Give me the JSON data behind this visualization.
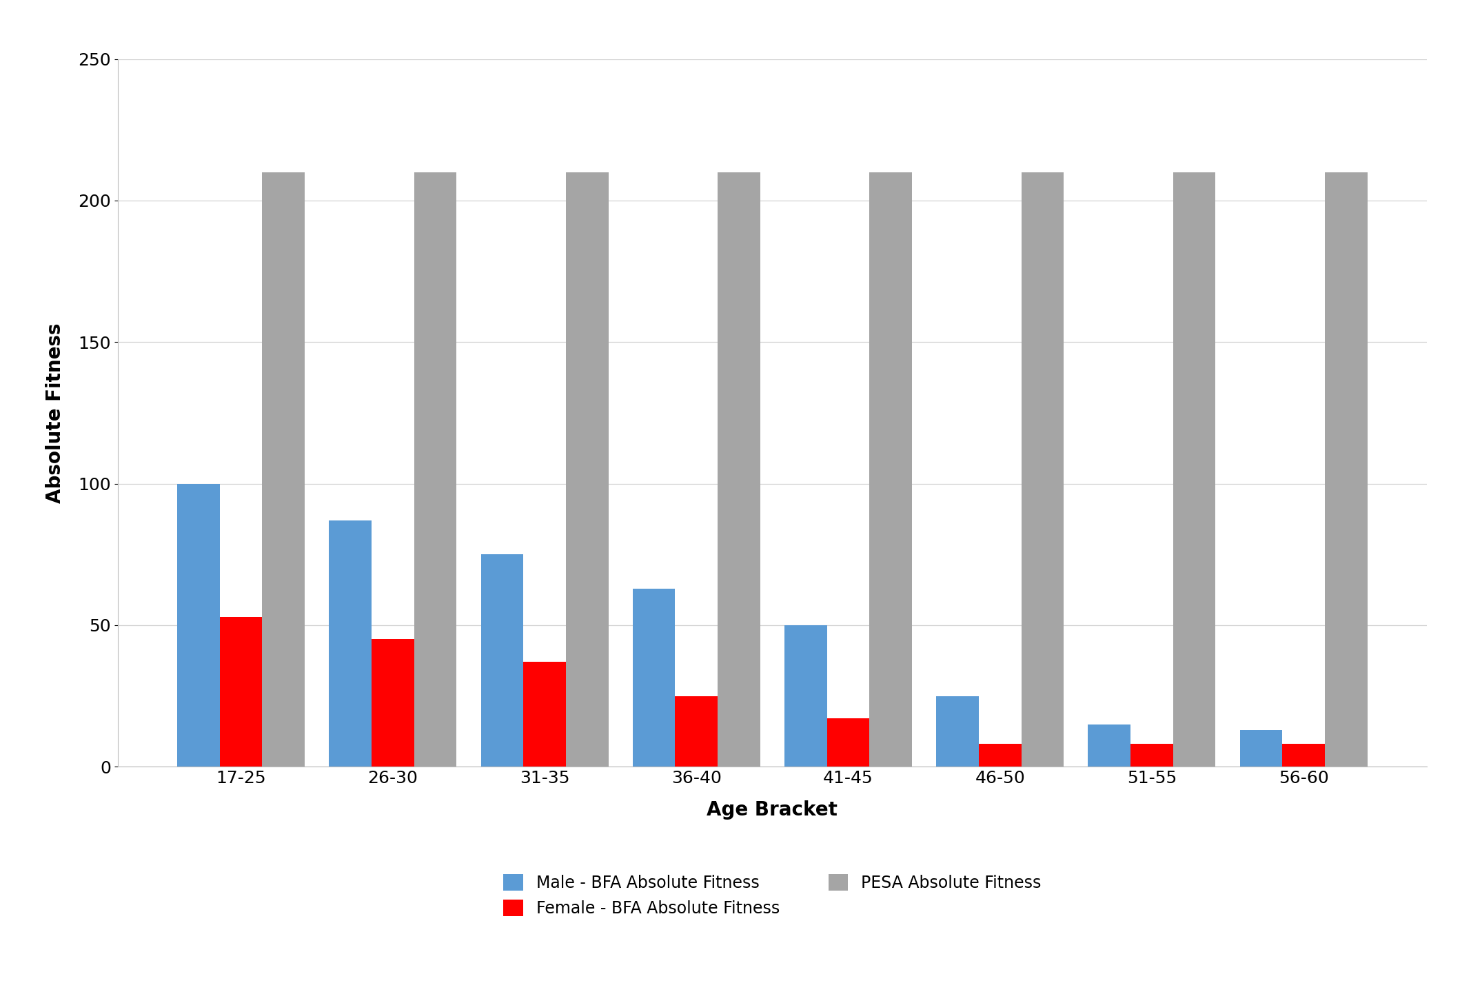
{
  "categories": [
    "17-25",
    "26-30",
    "31-35",
    "36-40",
    "41-45",
    "46-50",
    "51-55",
    "56-60"
  ],
  "male_bfa": [
    100,
    87,
    75,
    63,
    50,
    25,
    15,
    13
  ],
  "female_bfa": [
    53,
    45,
    37,
    25,
    17,
    8,
    8,
    8
  ],
  "pesa": [
    210,
    210,
    210,
    210,
    210,
    210,
    210,
    210
  ],
  "male_color": "#5B9BD5",
  "female_color": "#FF0000",
  "pesa_color": "#A5A5A5",
  "xlabel": "Age Bracket",
  "ylabel": "Absolute Fitness",
  "ylim": [
    0,
    250
  ],
  "yticks": [
    0,
    50,
    100,
    150,
    200,
    250
  ],
  "legend_labels": [
    "Male - BFA Absolute Fitness",
    "Female - BFA Absolute Fitness",
    "PESA Absolute Fitness"
  ],
  "bar_width": 0.28,
  "background_color": "#FFFFFF",
  "grid_color": "#D3D3D3",
  "tick_label_fontsize": 18,
  "axis_label_fontsize": 20,
  "legend_fontsize": 17
}
